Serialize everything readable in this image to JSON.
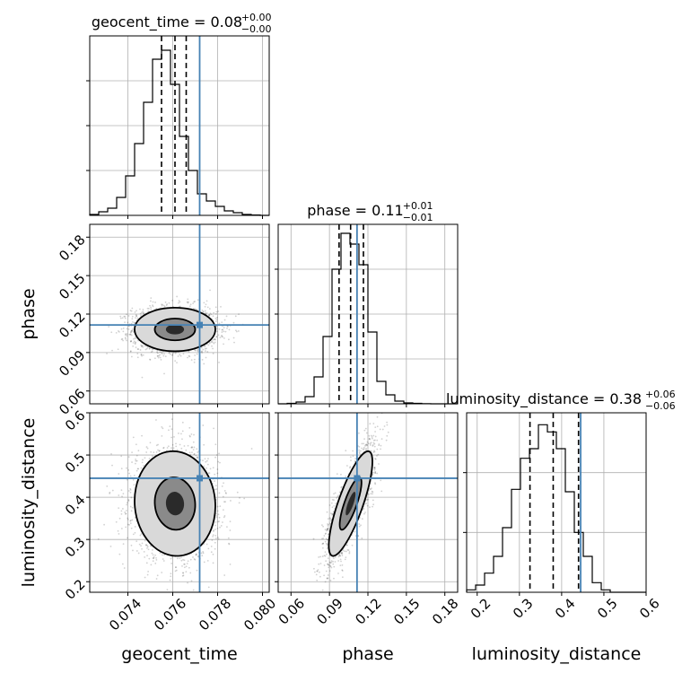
{
  "chart_data": {
    "type": "corner",
    "parameters": [
      {
        "key": "geocent_time",
        "label": "geocent_time",
        "median": "0.08",
        "err_plus": "+0.00",
        "err_minus": "−0.00",
        "range": [
          0.0723,
          0.0803
        ],
        "ticks": [
          0.074,
          0.076,
          0.078,
          0.08
        ],
        "tick_labels": [
          "0.074",
          "0.076",
          "0.078",
          "0.080"
        ],
        "quantiles": [
          0.0755,
          0.0761,
          0.0766
        ],
        "truth": 0.0772,
        "hist_counts": [
          0.5,
          2,
          4,
          10,
          22,
          40,
          63,
          87,
          92,
          73,
          44,
          25,
          12,
          8,
          5,
          2.5,
          1.5,
          0.5,
          0.2,
          0
        ]
      },
      {
        "key": "phase",
        "label": "phase",
        "median": "0.11",
        "err_plus": "+0.01",
        "err_minus": "−0.01",
        "range": [
          0.05,
          0.19
        ],
        "ticks": [
          0.06,
          0.09,
          0.12,
          0.15,
          0.18
        ],
        "tick_labels": [
          "0.06",
          "0.09",
          "0.12",
          "0.15",
          "0.18"
        ],
        "quantiles": [
          0.0975,
          0.1065,
          0.1165
        ],
        "truth": 0.1115,
        "hist_counts": [
          0,
          0.5,
          2,
          8,
          30,
          75,
          150,
          190,
          178,
          155,
          80,
          25,
          10,
          3,
          1,
          0.5,
          0.2,
          0,
          0,
          0
        ]
      },
      {
        "key": "luminosity_distance",
        "label": "luminosity_distance",
        "median": "0.38",
        "err_plus": "+0.06",
        "err_minus": "−0.06",
        "range": [
          0.175,
          0.6
        ],
        "ticks": [
          0.2,
          0.3,
          0.4,
          0.5,
          0.6
        ],
        "tick_labels": [
          "0.2",
          "0.3",
          "0.4",
          "0.5",
          "0.6"
        ],
        "quantiles": [
          0.325,
          0.38,
          0.44
        ],
        "truth": 0.445,
        "hist_counts": [
          1,
          3,
          8,
          15,
          27,
          43,
          56,
          60,
          70,
          67,
          60,
          42,
          25,
          15,
          4,
          1,
          0,
          0,
          0,
          0
        ]
      }
    ],
    "hist_ymax": [
      100,
      200,
      75
    ],
    "hist_yticks": [
      [
        25,
        50,
        75
      ],
      [
        50,
        100,
        150
      ],
      [
        25,
        50
      ]
    ],
    "truth_color": "#4682b4",
    "contour_levels": [
      0.39,
      0.86
    ],
    "grid": true
  }
}
